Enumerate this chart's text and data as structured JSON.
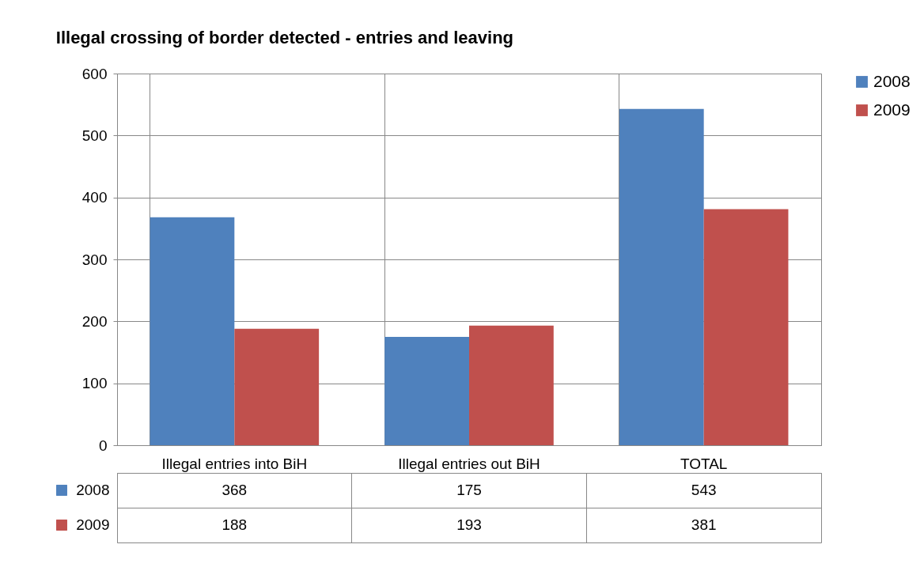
{
  "chart_data": {
    "type": "bar",
    "title": "Illegal crossing of border detected - entries and leaving",
    "categories": [
      "Illegal entries into BiH",
      "Illegal entries out BiH",
      "TOTAL"
    ],
    "series": [
      {
        "name": "2008",
        "color": "#4f81bd",
        "values": [
          368,
          175,
          543
        ]
      },
      {
        "name": "2009",
        "color": "#c0504d",
        "values": [
          188,
          193,
          381
        ]
      }
    ],
    "ylim": [
      0,
      600
    ],
    "yticks": [
      0,
      100,
      200,
      300,
      400,
      500,
      600
    ],
    "grid": "y",
    "legend": "right",
    "data_labels": true
  }
}
